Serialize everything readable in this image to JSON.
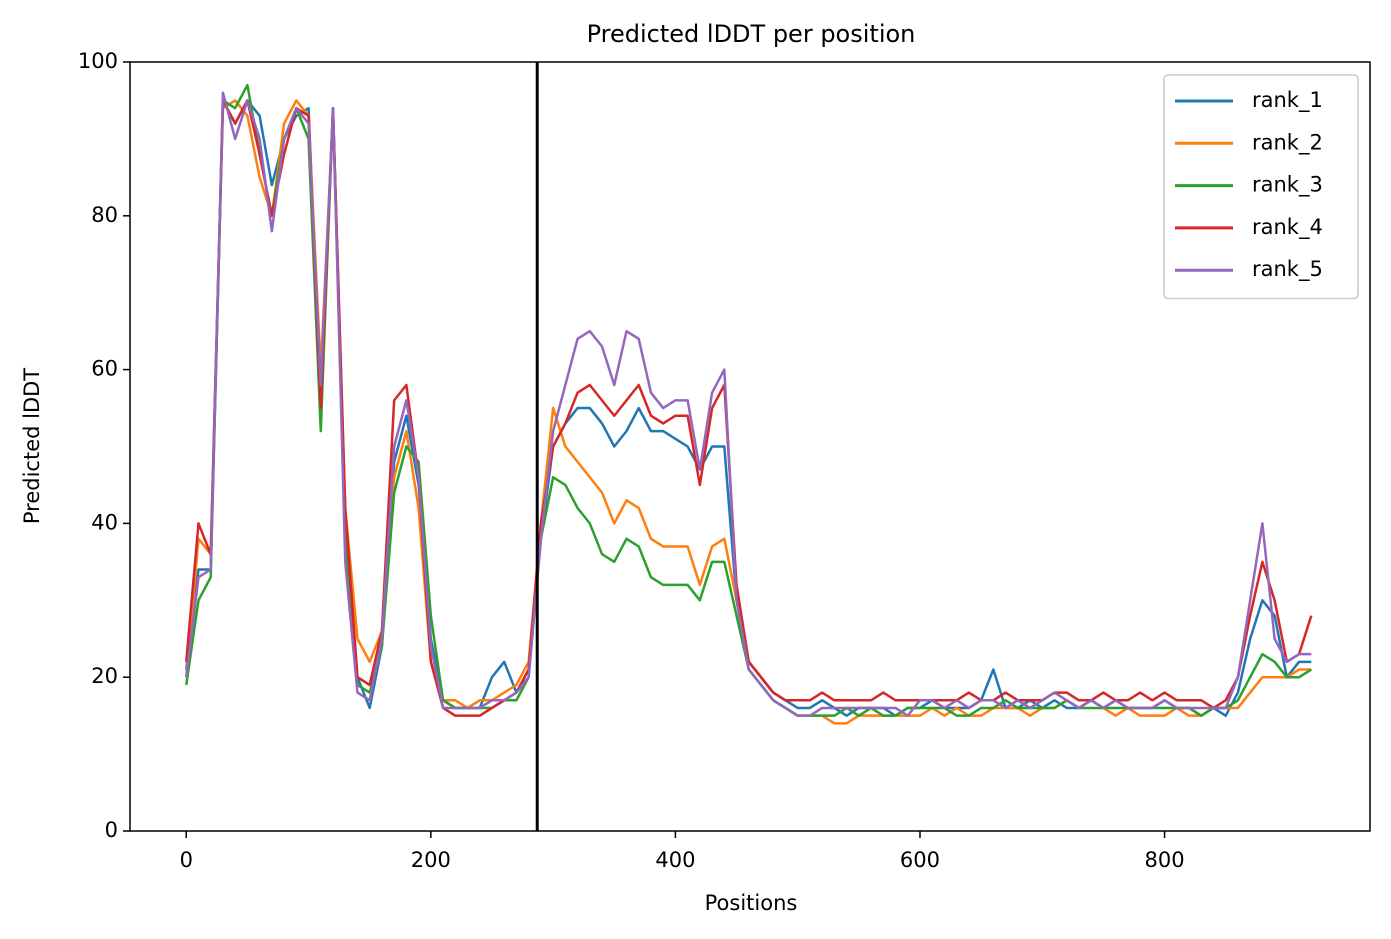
{
  "chart_data": {
    "type": "line",
    "title": "Predicted lDDT per position",
    "xlabel": "Positions",
    "ylabel": "Predicted lDDT",
    "xlim": [
      -46,
      968
    ],
    "ylim": [
      0,
      100
    ],
    "xticks": [
      0,
      200,
      400,
      600,
      800
    ],
    "yticks": [
      0,
      20,
      40,
      60,
      80,
      100
    ],
    "legend": "upper right",
    "vlines": [
      287
    ],
    "vline_color": "#000000",
    "x": [
      0,
      10,
      20,
      30,
      40,
      50,
      60,
      70,
      80,
      90,
      100,
      110,
      120,
      130,
      140,
      150,
      160,
      170,
      180,
      190,
      200,
      210,
      220,
      230,
      240,
      250,
      260,
      270,
      280,
      290,
      300,
      310,
      320,
      330,
      340,
      350,
      360,
      370,
      380,
      390,
      400,
      410,
      420,
      430,
      440,
      450,
      460,
      470,
      480,
      490,
      500,
      510,
      520,
      530,
      540,
      550,
      560,
      570,
      580,
      590,
      600,
      610,
      620,
      630,
      640,
      650,
      660,
      670,
      680,
      690,
      700,
      710,
      720,
      730,
      740,
      750,
      760,
      770,
      780,
      790,
      800,
      810,
      820,
      830,
      840,
      850,
      860,
      870,
      880,
      890,
      900,
      910,
      920
    ],
    "series": [
      {
        "name": "rank_1",
        "color": "#1f77b4",
        "values": [
          21,
          34,
          34,
          95,
          92,
          95,
          93,
          84,
          90,
          93,
          94,
          56,
          94,
          40,
          20,
          16,
          24,
          48,
          54,
          45,
          25,
          17,
          16,
          16,
          16,
          20,
          22,
          18,
          21,
          38,
          50,
          53,
          55,
          55,
          53,
          50,
          52,
          55,
          52,
          52,
          51,
          50,
          47,
          50,
          50,
          30,
          22,
          20,
          18,
          17,
          16,
          16,
          17,
          16,
          15,
          16,
          16,
          16,
          15,
          16,
          16,
          17,
          16,
          16,
          16,
          17,
          21,
          16,
          16,
          17,
          16,
          17,
          16,
          16,
          17,
          16,
          17,
          16,
          16,
          16,
          17,
          16,
          16,
          15,
          16,
          15,
          18,
          25,
          30,
          28,
          20,
          22,
          22
        ]
      },
      {
        "name": "rank_2",
        "color": "#ff7f0e",
        "values": [
          20,
          38,
          36,
          94,
          95,
          93,
          85,
          80,
          92,
          95,
          93,
          60,
          93,
          42,
          25,
          22,
          26,
          46,
          52,
          42,
          22,
          17,
          17,
          16,
          17,
          17,
          18,
          19,
          22,
          40,
          55,
          50,
          48,
          46,
          44,
          40,
          43,
          42,
          38,
          37,
          37,
          37,
          32,
          37,
          38,
          30,
          21,
          19,
          17,
          16,
          15,
          15,
          15,
          14,
          14,
          15,
          15,
          15,
          15,
          15,
          15,
          16,
          15,
          16,
          15,
          15,
          16,
          16,
          16,
          15,
          16,
          16,
          17,
          16,
          17,
          16,
          15,
          16,
          15,
          15,
          15,
          16,
          15,
          15,
          16,
          16,
          16,
          18,
          20,
          20,
          20,
          21,
          21
        ]
      },
      {
        "name": "rank_3",
        "color": "#2ca02c",
        "values": [
          19,
          30,
          33,
          95,
          94,
          97,
          88,
          80,
          90,
          94,
          90,
          52,
          94,
          38,
          19,
          18,
          24,
          44,
          50,
          48,
          28,
          17,
          16,
          16,
          16,
          16,
          17,
          17,
          20,
          38,
          46,
          45,
          42,
          40,
          36,
          35,
          38,
          37,
          33,
          32,
          32,
          32,
          30,
          35,
          35,
          28,
          21,
          19,
          17,
          16,
          15,
          15,
          15,
          15,
          16,
          15,
          16,
          15,
          15,
          16,
          16,
          16,
          16,
          15,
          15,
          16,
          16,
          17,
          16,
          16,
          16,
          16,
          17,
          16,
          16,
          16,
          16,
          16,
          16,
          16,
          16,
          16,
          16,
          15,
          16,
          16,
          17,
          20,
          23,
          22,
          20,
          20,
          21
        ]
      },
      {
        "name": "rank_4",
        "color": "#d62728",
        "values": [
          22,
          40,
          36,
          95,
          92,
          95,
          88,
          80,
          88,
          94,
          93,
          55,
          94,
          42,
          20,
          19,
          26,
          56,
          58,
          46,
          22,
          16,
          15,
          15,
          15,
          16,
          17,
          18,
          21,
          40,
          50,
          53,
          57,
          58,
          56,
          54,
          56,
          58,
          54,
          53,
          54,
          54,
          45,
          55,
          58,
          32,
          22,
          20,
          18,
          17,
          17,
          17,
          18,
          17,
          17,
          17,
          17,
          18,
          17,
          17,
          17,
          17,
          17,
          17,
          18,
          17,
          17,
          18,
          17,
          17,
          17,
          18,
          18,
          17,
          17,
          18,
          17,
          17,
          18,
          17,
          18,
          17,
          17,
          17,
          16,
          17,
          20,
          28,
          35,
          30,
          22,
          23,
          28
        ]
      },
      {
        "name": "rank_5",
        "color": "#9467bd",
        "values": [
          20,
          33,
          34,
          96,
          90,
          95,
          90,
          78,
          90,
          94,
          92,
          58,
          94,
          35,
          18,
          17,
          25,
          50,
          56,
          46,
          24,
          16,
          16,
          16,
          16,
          17,
          17,
          18,
          20,
          38,
          52,
          58,
          64,
          65,
          63,
          58,
          65,
          64,
          57,
          55,
          56,
          56,
          47,
          57,
          60,
          30,
          21,
          19,
          17,
          16,
          15,
          15,
          16,
          16,
          16,
          16,
          16,
          16,
          16,
          15,
          17,
          17,
          16,
          17,
          16,
          17,
          17,
          16,
          17,
          16,
          17,
          18,
          17,
          16,
          17,
          16,
          17,
          16,
          16,
          16,
          17,
          16,
          16,
          16,
          16,
          16,
          20,
          30,
          40,
          25,
          22,
          23,
          23
        ]
      }
    ]
  }
}
